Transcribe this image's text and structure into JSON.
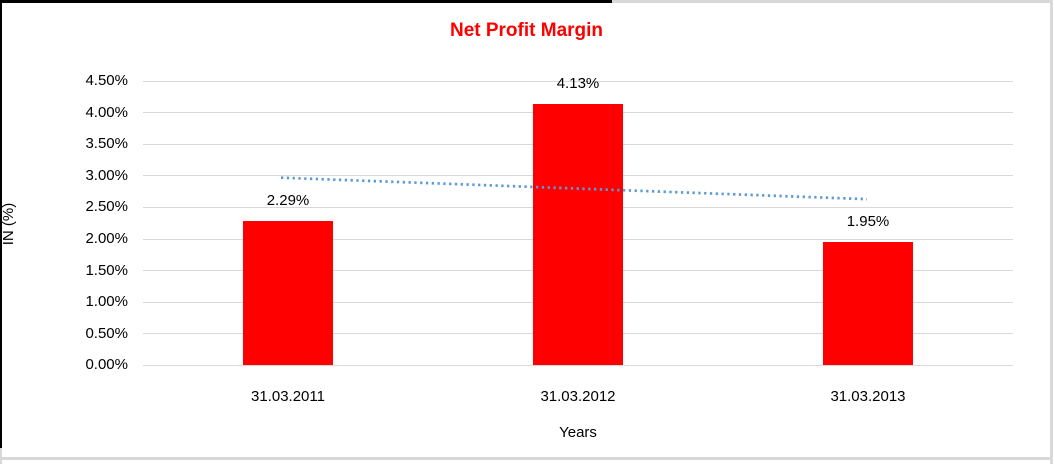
{
  "chart_data": {
    "type": "bar",
    "title": "Net Profit Margin",
    "xlabel": "Years",
    "ylabel": "IN (%)",
    "categories": [
      "31.03.2011",
      "31.03.2012",
      "31.03.2013"
    ],
    "values": [
      2.29,
      4.13,
      1.95
    ],
    "data_labels": [
      "2.29%",
      "4.13%",
      "1.95%"
    ],
    "ylim": [
      0,
      4.5
    ],
    "ytick_step": 0.5,
    "ytick_labels": [
      "0.00%",
      "0.50%",
      "1.00%",
      "1.50%",
      "2.00%",
      "2.50%",
      "3.00%",
      "3.50%",
      "4.00%",
      "4.50%"
    ],
    "grid": "horizontal",
    "legend": "none",
    "trendline": {
      "type": "linear",
      "style": "dotted",
      "start_value": 2.97,
      "end_value": 2.63
    }
  },
  "colors": {
    "title": "#ff0000",
    "bar": "#ff0000",
    "gridline": "#d9d9d9",
    "trendline": "#5b9bd5",
    "frame_gray": "#d8d8d8",
    "frame_black": "#000000",
    "text": "#000000"
  }
}
